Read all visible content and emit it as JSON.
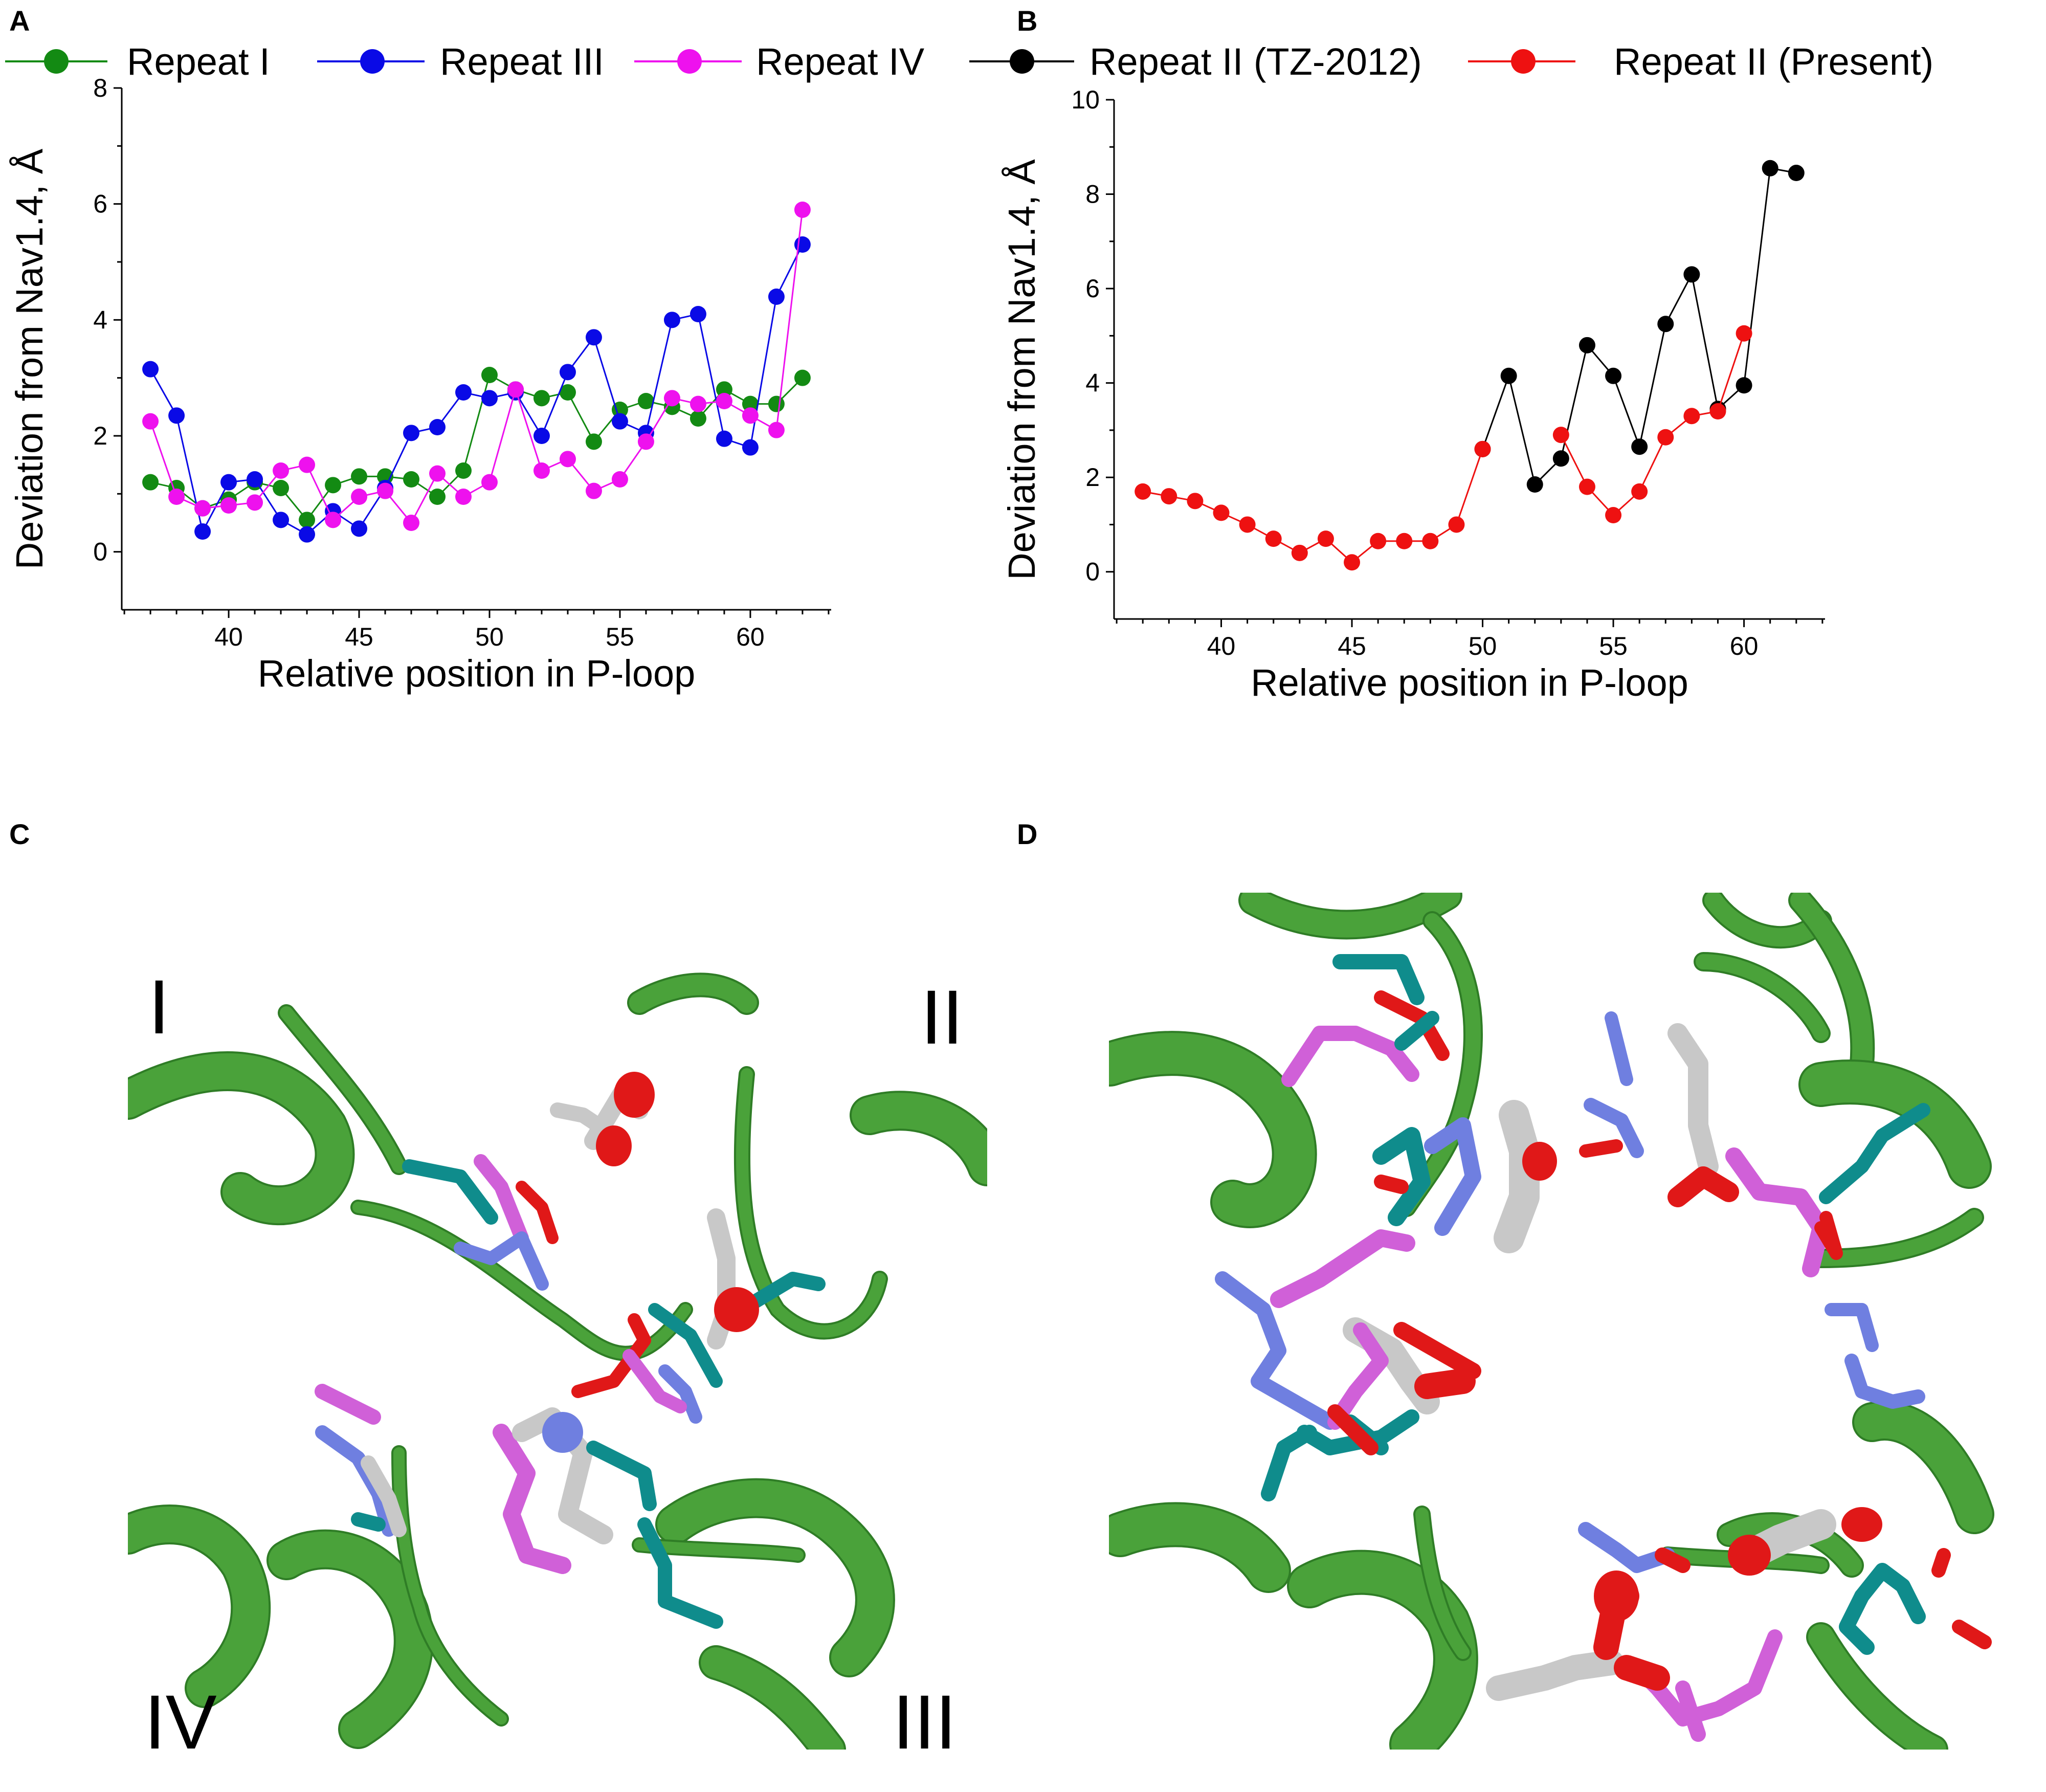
{
  "panel_labels": [
    "A",
    "B",
    "C",
    "D"
  ],
  "legend": [
    {
      "label": "Repeat I",
      "color": "#138a13"
    },
    {
      "label": "Repeat III",
      "color": "#0a0ae6"
    },
    {
      "label": "Repeat IV",
      "color": "#ee11ee"
    },
    {
      "label": "Repeat II (TZ-2012)",
      "color": "#000000"
    },
    {
      "label": "Repeat II (Present)",
      "color": "#ee1111"
    }
  ],
  "colors": {
    "helix": "#4aa23a",
    "helix_dark": "#2f7d26",
    "oxygen": "#e01818",
    "nitrogen": "#6f7fe0",
    "carbon_grey": "#c8c8c8",
    "carbon_teal": "#0f8c8c",
    "carbon_magenta": "#d060d8"
  },
  "structure_labels": {
    "I": "I",
    "II": "II",
    "III": "III",
    "IV": "IV"
  },
  "chart_data": [
    {
      "type": "line",
      "panel": "A",
      "xlabel": "Relative position in P-loop",
      "ylabel": "Deviation from Nav1.4, Å",
      "xlim": [
        35.9,
        63.1
      ],
      "ylim": [
        -1,
        8
      ],
      "xticks": [
        40,
        45,
        50,
        55,
        60
      ],
      "yticks": [
        0,
        2,
        4,
        6,
        8
      ],
      "series": [
        {
          "name": "Repeat I",
          "color": "#138a13",
          "x": [
            37,
            38,
            39,
            40,
            41,
            42,
            43,
            44,
            45,
            46,
            47,
            48,
            49,
            50,
            51,
            52,
            53,
            54,
            55,
            56,
            57,
            58,
            59,
            60,
            61,
            62
          ],
          "values": [
            1.2,
            1.1,
            0.75,
            0.9,
            1.2,
            1.1,
            0.55,
            1.15,
            1.3,
            1.3,
            1.25,
            0.95,
            1.4,
            3.05,
            2.8,
            2.65,
            2.75,
            1.9,
            2.45,
            2.6,
            2.5,
            2.3,
            2.8,
            2.55,
            2.55,
            3.0
          ]
        },
        {
          "name": "Repeat III",
          "color": "#0a0ae6",
          "x": [
            37,
            38,
            39,
            40,
            41,
            42,
            43,
            44,
            45,
            46,
            47,
            48,
            49,
            50,
            51,
            52,
            53,
            54,
            55,
            56,
            57,
            58,
            59,
            60,
            61,
            62
          ],
          "values": [
            3.15,
            2.35,
            0.35,
            1.2,
            1.25,
            0.55,
            0.3,
            0.7,
            0.4,
            1.1,
            2.05,
            2.15,
            2.75,
            2.65,
            2.75,
            2.0,
            3.1,
            3.7,
            2.25,
            2.05,
            4.0,
            4.1,
            1.95,
            1.8,
            4.4,
            5.3
          ]
        },
        {
          "name": "Repeat IV",
          "color": "#ee11ee",
          "x": [
            37,
            38,
            39,
            40,
            41,
            42,
            43,
            44,
            45,
            46,
            47,
            48,
            49,
            50,
            51,
            52,
            53,
            54,
            55,
            56,
            57,
            58,
            59,
            60,
            61,
            62
          ],
          "values": [
            2.25,
            0.95,
            0.75,
            0.8,
            0.85,
            1.4,
            1.5,
            0.55,
            0.95,
            1.05,
            0.5,
            1.35,
            0.95,
            1.2,
            2.8,
            1.4,
            1.6,
            1.05,
            1.25,
            1.9,
            2.65,
            2.55,
            2.6,
            2.35,
            2.1,
            5.9
          ]
        }
      ]
    },
    {
      "type": "line",
      "panel": "B",
      "xlabel": "Relative position in P-loop",
      "ylabel": "Deviation from Nav1.4, Å",
      "xlim": [
        35.9,
        63.1
      ],
      "ylim": [
        -1,
        10
      ],
      "xticks": [
        40,
        45,
        50,
        55,
        60
      ],
      "yticks": [
        0,
        2,
        4,
        6,
        8,
        10
      ],
      "series": [
        {
          "name": "Repeat II (TZ-2012)",
          "color": "#000000",
          "x": [
            50,
            51,
            52,
            53,
            54,
            55,
            56,
            57,
            58,
            59,
            60,
            61,
            62
          ],
          "values": [
            2.6,
            4.15,
            1.85,
            2.4,
            4.8,
            4.15,
            2.65,
            5.25,
            6.3,
            3.45,
            3.95,
            8.55,
            8.45
          ]
        },
        {
          "name": "Repeat II (Present)",
          "color": "#ee1111",
          "x": [
            37,
            38,
            39,
            40,
            41,
            42,
            43,
            44,
            45,
            46,
            47,
            48,
            49,
            50,
            51,
            52,
            53,
            54,
            55,
            56,
            57,
            58,
            59,
            60
          ],
          "values": [
            1.7,
            1.6,
            1.5,
            1.25,
            1.0,
            0.7,
            0.4,
            0.7,
            0.2,
            0.65,
            0.65,
            0.65,
            1.0,
            2.6,
            null,
            null,
            2.9,
            1.8,
            1.2,
            1.7,
            2.85,
            3.3,
            3.4,
            5.05
          ]
        }
      ]
    }
  ]
}
